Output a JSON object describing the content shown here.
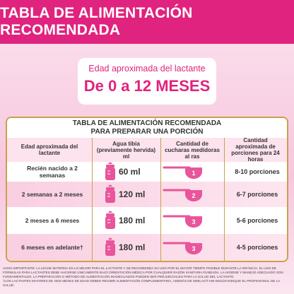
{
  "header": {
    "title": "TABLA DE ALIMENTACIÓN RECOMENDADA"
  },
  "hero": {
    "label": "Edad aproximada del lactante",
    "range": "De 0 a 12 MESES"
  },
  "table": {
    "title_lines": [
      "TABLA DE ALIMENTACIÓN RECOMENDADA",
      "PARA PREPARAR UNA PORCIÓN"
    ],
    "columns": [
      "Edad aproximada del lactante",
      "Agua tibia (previamente hervida) ml",
      "Cantidad de cucharas medidoras al ras",
      "Cantidad aproximada de porciones para 24 horas"
    ],
    "rows": [
      [
        "Recién nacido a 2 semanas",
        "60 ml",
        "1",
        "8-10 porciones"
      ],
      [
        "2 semanas a 2 meses",
        "120 ml",
        "2",
        "6-7 porciones"
      ],
      [
        "2 meses a 6 meses",
        "180 ml",
        "3",
        "5-6 porciones"
      ],
      [
        "6 meses en adelante†",
        "180 ml",
        "3",
        "4-5 porciones"
      ]
    ]
  },
  "footnote": [
    "AVISO IMPORTANTE: LA LECHE MATERNA ES LO MEJOR PARA EL LACTANTE Y SE RECOMIENDA SU USO POR EL MAYOR TIEMPO POSIBLE DURANTE LA INFANCIA. EL USO DE FÓRMULAS PARA LACTANTES DEBE HACERSE ÚNICAMENTE BAJO ORIENTACIÓN MÉDICA POR CUALQUIER RAZÓN SANITARIA FUNDADA. LA HIGIENE Y MANEJO ADECUADO SON FUNDAMENTALES; LA PREPARACIÓN O MÉTODO DE ALIMENTACIÓN INADECUADOS PUEDEN SER PERJUDICIALES PARA LA SALUD DEL LACTANTE.",
    "†LOS LACTANTES MAYORES DE SEIS MESES DE EDAD DEBEN RECIBIR ALIMENTACIÓN COMPLEMENTARIA, ADEMÁS DE SIMILAC® HM SEGÚN INDIQUE EL PROFESIONAL DE LA SALUD."
  ]
}
